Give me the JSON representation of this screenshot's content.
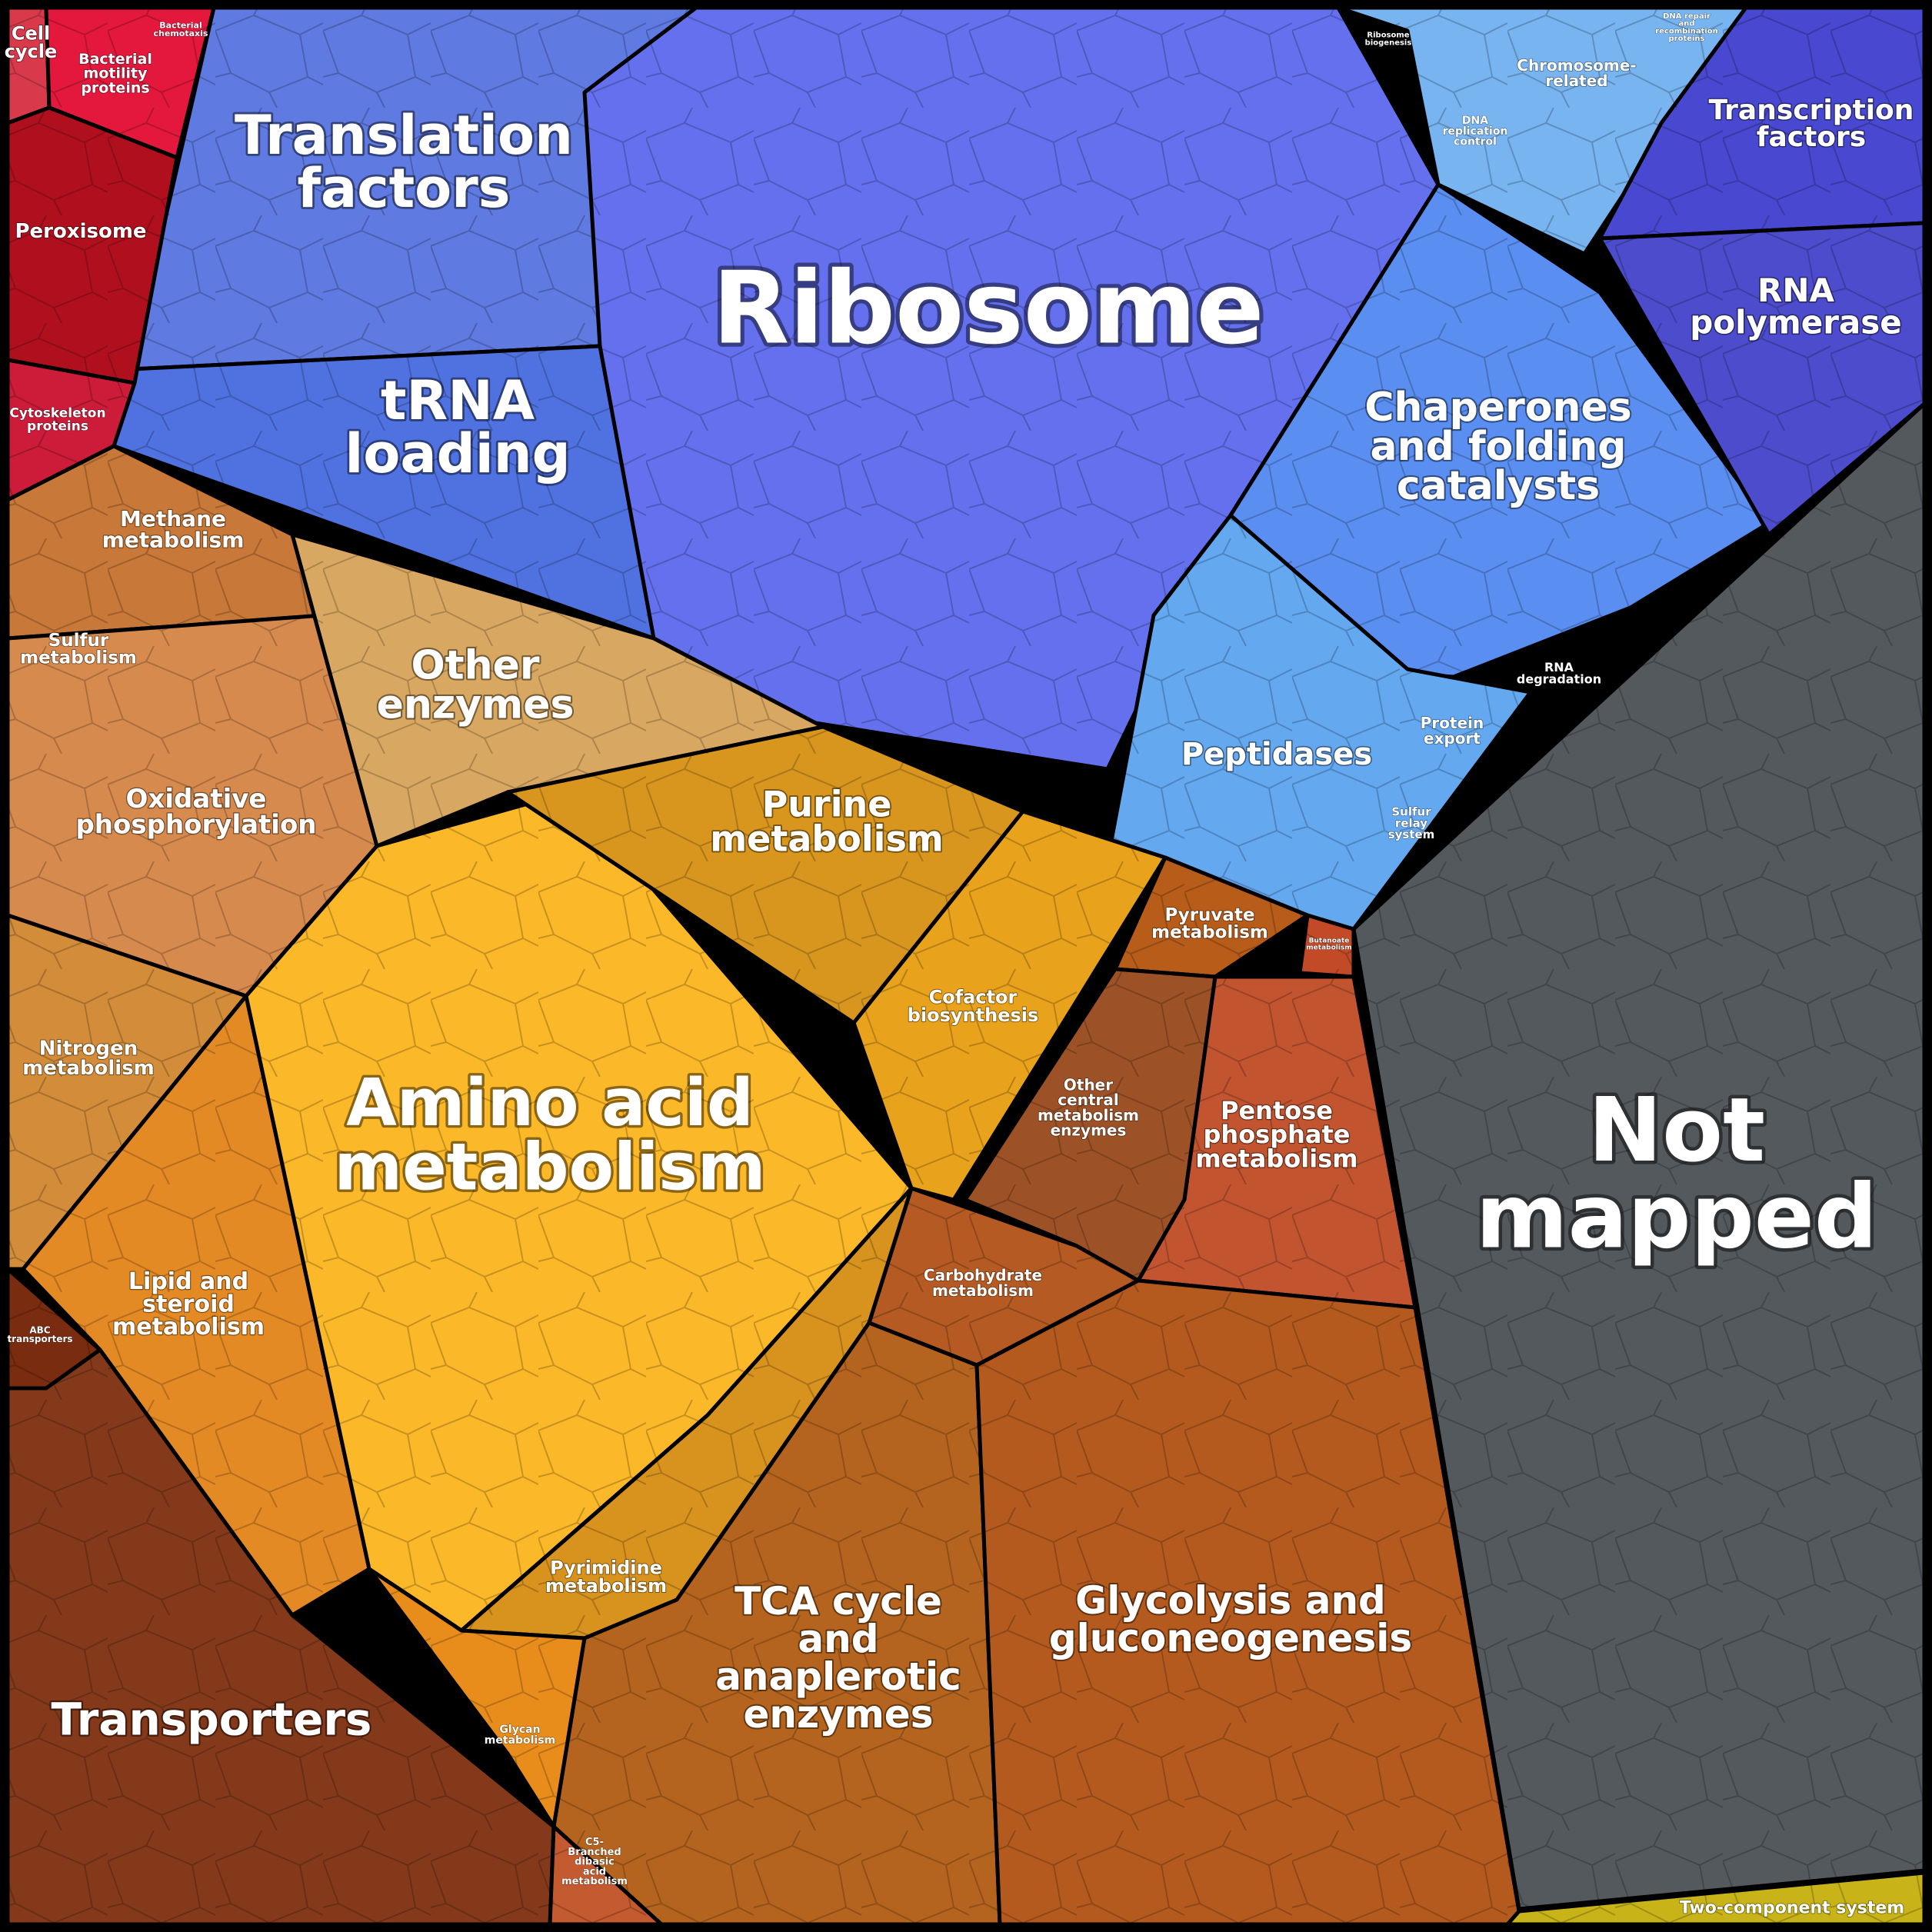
{
  "diagram": {
    "type": "voronoi-treemap",
    "colors": {
      "background": "#000000",
      "ribosome": "#6470ee",
      "translation": "#5f7ae0",
      "trna": "#5072e0",
      "chaperones": "#5a8ef0",
      "peptidases": "#64a8f0",
      "chromosome": "#78b4f0",
      "transcription": "#4848d0",
      "rna_polymerase": "#4c4ccc",
      "not_mapped": "#54595e",
      "amino_acid": "#fbb828",
      "purine": "#d8961e",
      "other_enzymes": "#d8a862",
      "oxphos": "#d78a4e",
      "transporters": "#843a1a",
      "glycolysis": "#b45a1e",
      "tca": "#b4641e",
      "pentose": "#c25430",
      "peroxisome": "#b0101e",
      "two_component": "#c8b418"
    },
    "regions": [
      {
        "id": "cell-cycle",
        "lines": [
          "Cell",
          "cycle"
        ]
      },
      {
        "id": "bacterial-motility",
        "lines": [
          "Bacterial",
          "motility",
          "proteins"
        ]
      },
      {
        "id": "bacterial-chemotaxis",
        "lines": [
          "Bacterial",
          "chemotaxis"
        ]
      },
      {
        "id": "peroxisome",
        "lines": [
          "Peroxisome"
        ]
      },
      {
        "id": "cytoskeleton",
        "lines": [
          "Cytoskeleton",
          "proteins"
        ]
      },
      {
        "id": "translation-factors",
        "lines": [
          "Translation",
          "factors"
        ]
      },
      {
        "id": "trna-loading",
        "lines": [
          "tRNA",
          "loading"
        ]
      },
      {
        "id": "ribosome",
        "lines": [
          "Ribosome"
        ]
      },
      {
        "id": "ribosome-biogenesis",
        "lines": [
          "Ribosome",
          "biogenesis"
        ]
      },
      {
        "id": "chromosome-related",
        "lines": [
          "Chromosome-",
          "related"
        ]
      },
      {
        "id": "dna-replication",
        "lines": [
          "DNA",
          "replication",
          "control"
        ]
      },
      {
        "id": "dna-repair",
        "lines": [
          "DNA repair",
          "and",
          "recombination",
          "proteins"
        ]
      },
      {
        "id": "transcription-factors",
        "lines": [
          "Transcription",
          "factors"
        ]
      },
      {
        "id": "rna-polymerase",
        "lines": [
          "RNA",
          "polymerase"
        ]
      },
      {
        "id": "chaperones",
        "lines": [
          "Chaperones",
          "and folding",
          "catalysts"
        ]
      },
      {
        "id": "rna-degradation",
        "lines": [
          "RNA",
          "degradation"
        ]
      },
      {
        "id": "peptidases",
        "lines": [
          "Peptidases"
        ]
      },
      {
        "id": "protein-export",
        "lines": [
          "Protein",
          "export"
        ]
      },
      {
        "id": "sulfur-relay",
        "lines": [
          "Sulfur",
          "relay",
          "system"
        ]
      },
      {
        "id": "methane",
        "lines": [
          "Methane",
          "metabolism"
        ]
      },
      {
        "id": "sulfur",
        "lines": [
          "Sulfur",
          "metabolism"
        ]
      },
      {
        "id": "other-enzymes",
        "lines": [
          "Other",
          "enzymes"
        ]
      },
      {
        "id": "oxphos",
        "lines": [
          "Oxidative",
          "phosphorylation"
        ]
      },
      {
        "id": "purine",
        "lines": [
          "Purine",
          "metabolism"
        ]
      },
      {
        "id": "nitrogen",
        "lines": [
          "Nitrogen",
          "metabolism"
        ]
      },
      {
        "id": "amino-acid",
        "lines": [
          "Amino acid",
          "metabolism"
        ]
      },
      {
        "id": "cofactor",
        "lines": [
          "Cofactor",
          "biosynthesis"
        ]
      },
      {
        "id": "pyruvate",
        "lines": [
          "Pyruvate",
          "metabolism"
        ]
      },
      {
        "id": "butanoate",
        "lines": [
          "Butanoate",
          "metabolism"
        ]
      },
      {
        "id": "other-central",
        "lines": [
          "Other",
          "central",
          "metabolism",
          "enzymes"
        ]
      },
      {
        "id": "pentose",
        "lines": [
          "Pentose",
          "phosphate",
          "metabolism"
        ]
      },
      {
        "id": "not-mapped",
        "lines": [
          "Not",
          "mapped"
        ]
      },
      {
        "id": "abc",
        "lines": [
          "ABC",
          "transporters"
        ]
      },
      {
        "id": "lipid",
        "lines": [
          "Lipid and",
          "steroid",
          "metabolism"
        ]
      },
      {
        "id": "carbohydrate",
        "lines": [
          "Carbohydrate",
          "metabolism"
        ]
      },
      {
        "id": "pyrimidine",
        "lines": [
          "Pyrimidine",
          "metabolism"
        ]
      },
      {
        "id": "glycolysis",
        "lines": [
          "Glycolysis and",
          "gluconeogenesis"
        ]
      },
      {
        "id": "tca",
        "lines": [
          "TCA cycle",
          "and",
          "anaplerotic",
          "enzymes"
        ]
      },
      {
        "id": "transporters",
        "lines": [
          "Transporters"
        ]
      },
      {
        "id": "glycan",
        "lines": [
          "Glycan",
          "metabolism"
        ]
      },
      {
        "id": "c5-branched",
        "lines": [
          "C5-",
          "Branched",
          "dibasic",
          "acid",
          "metabolism"
        ]
      },
      {
        "id": "two-component",
        "lines": [
          "Two-component system"
        ]
      }
    ]
  }
}
